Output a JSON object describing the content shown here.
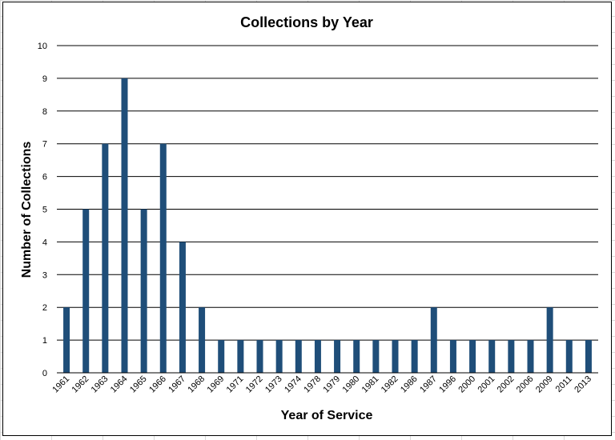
{
  "chart_data": {
    "type": "bar",
    "title": "Collections by Year",
    "xlabel": "Year of Service",
    "ylabel": "Number of Collections",
    "categories": [
      "1961",
      "1962",
      "1963",
      "1964",
      "1965",
      "1966",
      "1967",
      "1968",
      "1969",
      "1971",
      "1972",
      "1973",
      "1974",
      "1978",
      "1979",
      "1980",
      "1981",
      "1982",
      "1986",
      "1987",
      "1996",
      "2000",
      "2001",
      "2002",
      "2006",
      "2009",
      "2011",
      "2013"
    ],
    "values": [
      2,
      5,
      7,
      9,
      5,
      7,
      4,
      2,
      1,
      1,
      1,
      1,
      1,
      1,
      1,
      1,
      1,
      1,
      1,
      2,
      1,
      1,
      1,
      1,
      1,
      2,
      1,
      1
    ],
    "ylim": [
      0,
      10
    ],
    "yticks": [
      0,
      1,
      2,
      3,
      4,
      5,
      6,
      7,
      8,
      9,
      10
    ],
    "grid": true,
    "legend": "none",
    "bar_color": "#1f4e79"
  }
}
